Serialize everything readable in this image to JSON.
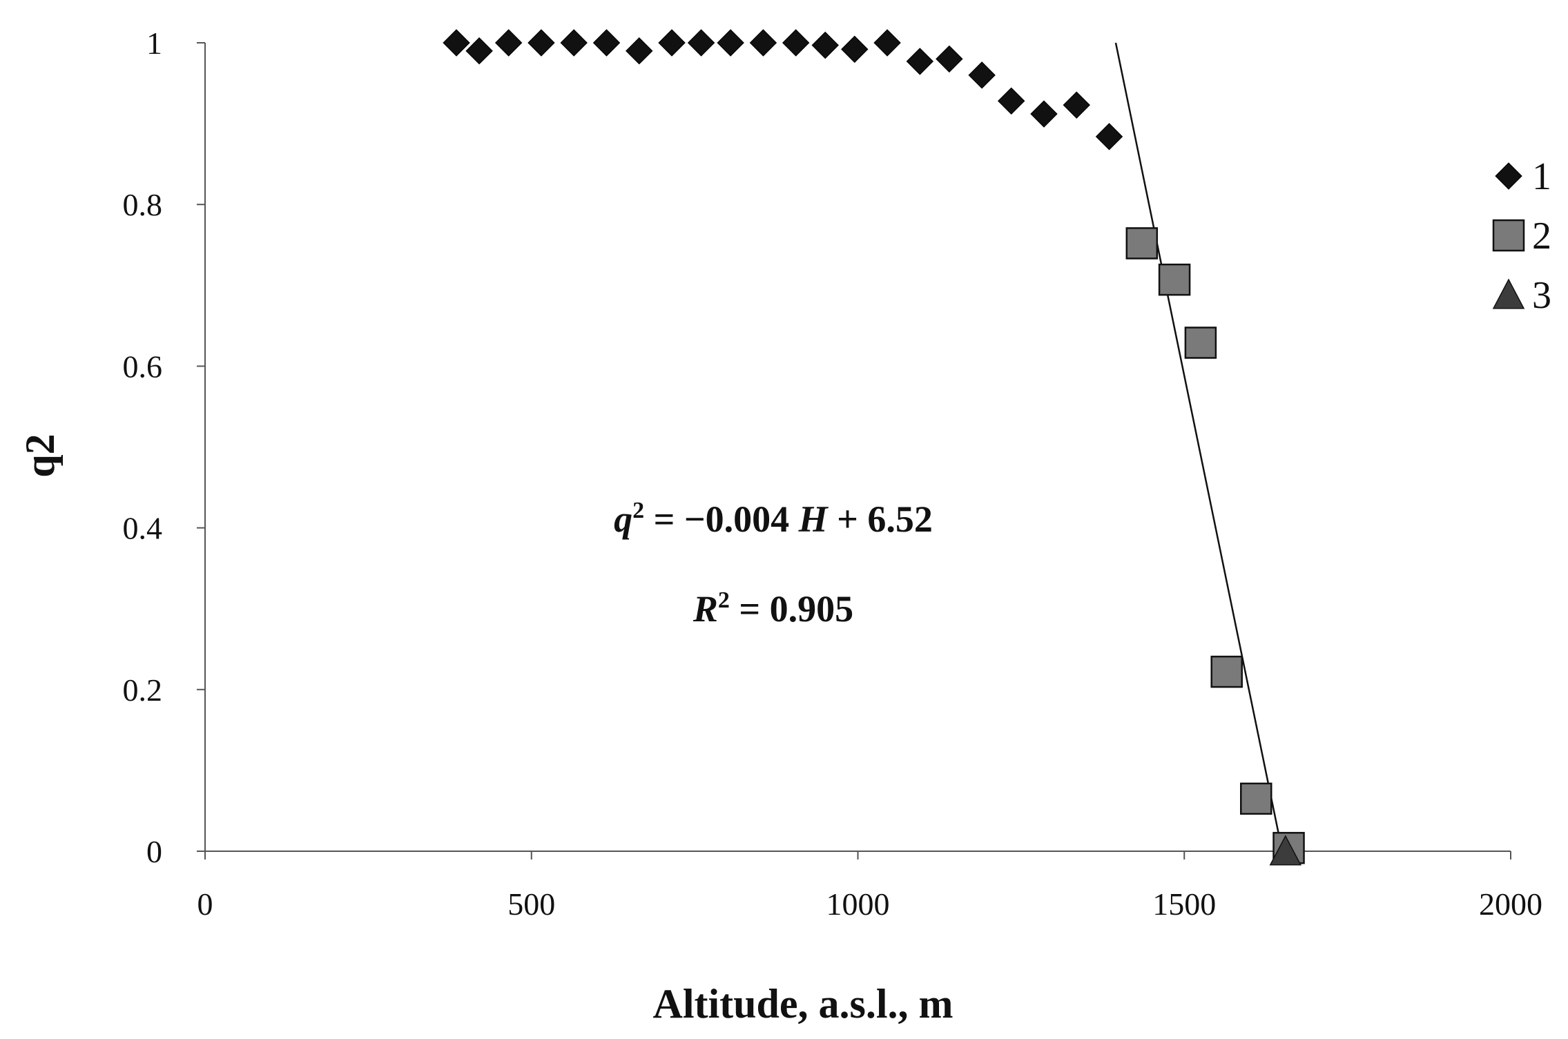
{
  "chart_data": {
    "type": "scatter",
    "xlabel": "Altitude, a.s.l., m",
    "ylabel": "q2",
    "xlim": [
      0,
      2000
    ],
    "ylim": [
      0,
      1
    ],
    "x_ticks": [
      "0",
      "500",
      "1000",
      "1500",
      "2000"
    ],
    "y_ticks": [
      "0",
      "0.2",
      "0.4",
      "0.6",
      "0.8",
      "1"
    ],
    "grid": false,
    "legend_position": "right",
    "series": [
      {
        "name": "1",
        "marker": "diamond",
        "color": "#111111",
        "points": [
          [
            385,
            1.0
          ],
          [
            420,
            0.99
          ],
          [
            465,
            1.0
          ],
          [
            515,
            1.0
          ],
          [
            565,
            1.0
          ],
          [
            615,
            1.0
          ],
          [
            665,
            0.99
          ],
          [
            715,
            1.0
          ],
          [
            760,
            1.0
          ],
          [
            805,
            1.0
          ],
          [
            855,
            1.0
          ],
          [
            905,
            1.0
          ],
          [
            950,
            0.997
          ],
          [
            995,
            0.992
          ],
          [
            1045,
            1.0
          ],
          [
            1095,
            0.977
          ],
          [
            1140,
            0.98
          ],
          [
            1190,
            0.96
          ],
          [
            1235,
            0.928
          ],
          [
            1285,
            0.912
          ],
          [
            1335,
            0.923
          ],
          [
            1385,
            0.884
          ]
        ]
      },
      {
        "name": "2",
        "marker": "square",
        "color": "#7a7a7a",
        "points": [
          [
            1435,
            0.752
          ],
          [
            1485,
            0.707
          ],
          [
            1525,
            0.629
          ],
          [
            1565,
            0.222
          ],
          [
            1610,
            0.065
          ],
          [
            1660,
            0.004
          ]
        ]
      },
      {
        "name": "3",
        "marker": "triangle",
        "color": "#3c3c3c",
        "points": [
          [
            1655,
            0.0
          ]
        ]
      }
    ],
    "trendline": {
      "x": [
        1395,
        1650
      ],
      "y": [
        1.0,
        0.0
      ]
    },
    "annotations": {
      "equation": {
        "italic_var": "q",
        "sup": "2",
        "rest": " = −0.004 ",
        "italic_var2": "H",
        "tail": " + 6.52"
      },
      "r_squared": {
        "italic_var": "R",
        "sup": "2",
        "rest": " = 0.905"
      }
    }
  }
}
